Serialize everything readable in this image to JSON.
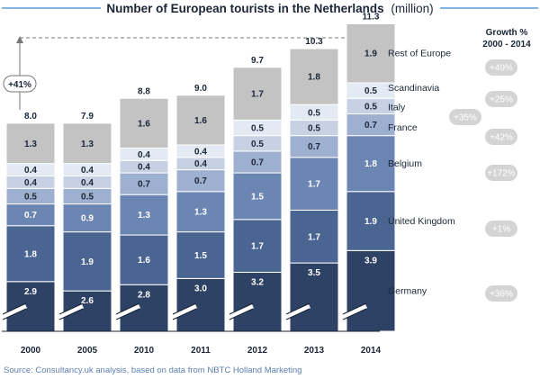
{
  "chart_data": {
    "type": "bar",
    "stacked": true,
    "title": "Number of European tourists in the Netherlands",
    "title_unit": "(million)",
    "categories": [
      "2000",
      "2005",
      "2010",
      "2011",
      "2012",
      "2013",
      "2014"
    ],
    "totals": [
      "8.0",
      "7.9",
      "8.8",
      "9.0",
      "9.7",
      "10.3",
      "11.3"
    ],
    "series": [
      {
        "name": "Germany",
        "values": [
          2.9,
          2.6,
          2.8,
          3.0,
          3.2,
          3.5,
          3.9
        ],
        "labels": [
          "2.9",
          "2.6",
          "2.8",
          "3.0",
          "3.2",
          "3.5",
          "3.9"
        ],
        "color": "#2e4265",
        "text_color": "#ffffff",
        "growth": "+36%"
      },
      {
        "name": "United Kingdom",
        "values": [
          1.8,
          1.9,
          1.6,
          1.5,
          1.7,
          1.7,
          1.9
        ],
        "labels": [
          "1.8",
          "1.9",
          "1.6",
          "1.5",
          "1.7",
          "1.7",
          "1.9"
        ],
        "color": "#4b6592",
        "text_color": "#ffffff",
        "growth": "+1%"
      },
      {
        "name": "Belgium",
        "values": [
          0.7,
          0.9,
          1.3,
          1.3,
          1.5,
          1.7,
          1.8
        ],
        "labels": [
          "0.7",
          "0.9",
          "1.3",
          "1.3",
          "1.5",
          "1.7",
          "1.8"
        ],
        "color": "#6c86b4",
        "text_color": "#ffffff",
        "growth": "+172%"
      },
      {
        "name": "France",
        "values": [
          0.5,
          0.5,
          0.7,
          0.7,
          0.7,
          0.7,
          0.7
        ],
        "labels": [
          "0.5",
          "0.5",
          "0.7",
          "0.7",
          "0.7",
          "0.7",
          "0.7"
        ],
        "color": "#9eb0d0",
        "text_color": "#1b2536",
        "growth": "+42%"
      },
      {
        "name": "Italy",
        "values": [
          0.4,
          0.4,
          0.4,
          0.4,
          0.5,
          0.5,
          0.5
        ],
        "labels": [
          "0.4",
          "0.4",
          "0.4",
          "0.4",
          "0.5",
          "0.5",
          "0.5"
        ],
        "color": "#c6d1e4",
        "text_color": "#1b2536",
        "growth": "+35%"
      },
      {
        "name": "Scandinavia",
        "values": [
          0.4,
          0.4,
          0.4,
          0.4,
          0.5,
          0.5,
          0.5
        ],
        "labels": [
          "0.4",
          "0.4",
          "0.4",
          "0.4",
          "0.5",
          "0.5",
          "0.5"
        ],
        "color": "#e4eaf3",
        "text_color": "#1b2536",
        "growth": "+25%"
      },
      {
        "name": "Rest of Europe",
        "values": [
          1.3,
          1.3,
          1.6,
          1.6,
          1.7,
          1.8,
          1.9
        ],
        "labels": [
          "1.3",
          "1.3",
          "1.6",
          "1.6",
          "1.7",
          "1.8",
          "1.9"
        ],
        "color": "#c3c3c3",
        "text_color": "#1b2536",
        "growth": "+49%"
      }
    ],
    "growth_header": [
      "Growth %",
      "2000 - 2014"
    ],
    "total_growth": "+41%",
    "axis_break": true,
    "grid": false,
    "legend": "right",
    "source": "Source: Consultancy.uk analysis, based on data from NBTC Holland Marketing",
    "colors": {
      "accent_line": "#5b9bd5",
      "bubble": "#d4d4d4",
      "text": "#1b2536"
    }
  }
}
